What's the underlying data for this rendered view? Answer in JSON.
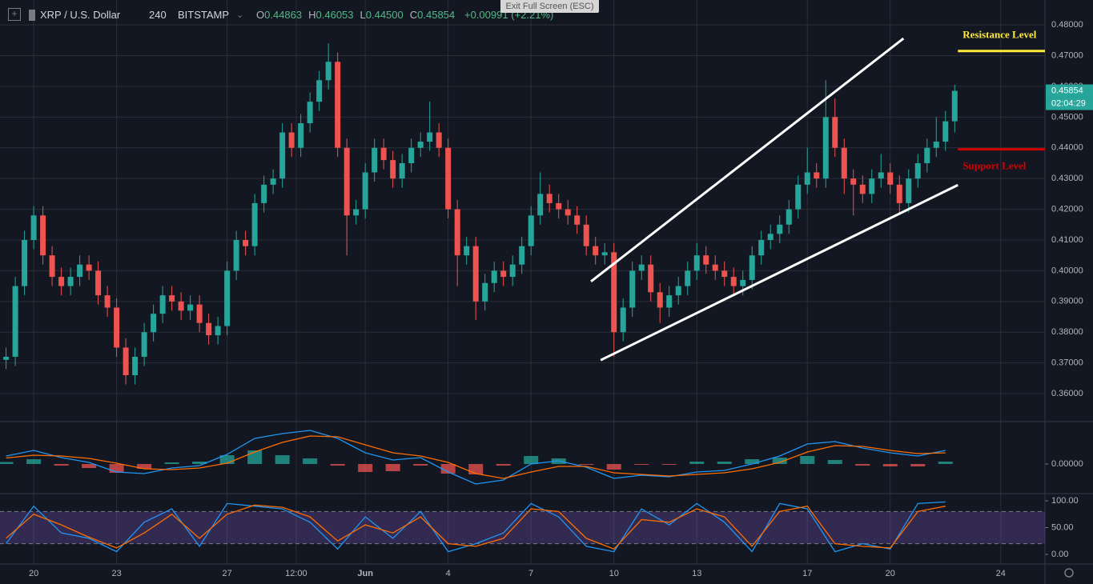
{
  "header": {
    "symbol": "XRP / U.S. Dollar",
    "interval": "240",
    "exchange": "BITSTAMP",
    "ohlc": [
      {
        "label": "O",
        "value": "0.44863"
      },
      {
        "label": "H",
        "value": "0.46053"
      },
      {
        "label": "L",
        "value": "0.44500"
      },
      {
        "label": "C",
        "value": "0.45854"
      }
    ],
    "change": "+0.00991 (+2.21%)",
    "exit_button": "Exit Full Screen (ESC)"
  },
  "chart_data": [
    {
      "type": "candlestick",
      "up_color": "#26a69a",
      "down_color": "#ef5350",
      "grid": true,
      "xlim": [
        -1.22,
        36.6
      ],
      "xticks": [
        {
          "value": 0,
          "label": "20"
        },
        {
          "value": 3,
          "label": "23"
        },
        {
          "value": 7,
          "label": "27"
        },
        {
          "value": 9.5,
          "label": "12:00"
        },
        {
          "value": 12,
          "label": "Jun"
        },
        {
          "value": 15,
          "label": "4"
        },
        {
          "value": 18,
          "label": "7"
        },
        {
          "value": 21,
          "label": "10"
        },
        {
          "value": 24,
          "label": "13"
        },
        {
          "value": 28,
          "label": "17"
        },
        {
          "value": 31,
          "label": "20"
        },
        {
          "value": 35,
          "label": "24"
        }
      ],
      "ylim": [
        0.3509,
        0.4881
      ],
      "yticks": [
        {
          "value": 0.36,
          "label": "0.36000"
        },
        {
          "value": 0.37,
          "label": "0.37000"
        },
        {
          "value": 0.38,
          "label": "0.38000"
        },
        {
          "value": 0.39,
          "label": "0.39000"
        },
        {
          "value": 0.4,
          "label": "0.40000"
        },
        {
          "value": 0.41,
          "label": "0.41000"
        },
        {
          "value": 0.42,
          "label": "0.42000"
        },
        {
          "value": 0.43,
          "label": "0.43000"
        },
        {
          "value": 0.44,
          "label": "0.44000"
        },
        {
          "value": 0.45,
          "label": "0.45000"
        },
        {
          "value": 0.46,
          "label": "0.46000"
        },
        {
          "value": 0.47,
          "label": "0.47000"
        },
        {
          "value": 0.48,
          "label": "0.48000"
        }
      ],
      "last_price": 0.45854,
      "countdown": "02:04:29",
      "candles": {
        "open": [
          0.371,
          0.372,
          0.395,
          0.41,
          0.418,
          0.405,
          0.398,
          0.395,
          0.398,
          0.402,
          0.4,
          0.392,
          0.388,
          0.375,
          0.366,
          0.372,
          0.38,
          0.386,
          0.392,
          0.39,
          0.387,
          0.389,
          0.383,
          0.379,
          0.382,
          0.4,
          0.41,
          0.408,
          0.422,
          0.428,
          0.43,
          0.445,
          0.44,
          0.448,
          0.455,
          0.462,
          0.468,
          0.44,
          0.418,
          0.42,
          0.432,
          0.44,
          0.436,
          0.43,
          0.435,
          0.44,
          0.442,
          0.445,
          0.44,
          0.42,
          0.405,
          0.408,
          0.39,
          0.396,
          0.4,
          0.398,
          0.402,
          0.408,
          0.418,
          0.425,
          0.422,
          0.42,
          0.418,
          0.415,
          0.408,
          0.405,
          0.406,
          0.38,
          0.388,
          0.4,
          0.402,
          0.393,
          0.388,
          0.392,
          0.395,
          0.4,
          0.405,
          0.402,
          0.4,
          0.398,
          0.395,
          0.397,
          0.405,
          0.41,
          0.412,
          0.415,
          0.42,
          0.428,
          0.432,
          0.43,
          0.45,
          0.44,
          0.43,
          0.428,
          0.425,
          0.43,
          0.432,
          0.428,
          0.422,
          0.43,
          0.435,
          0.44,
          0.442,
          0.44863
        ],
        "high": [
          0.375,
          0.398,
          0.413,
          0.421,
          0.421,
          0.408,
          0.401,
          0.401,
          0.405,
          0.405,
          0.403,
          0.395,
          0.391,
          0.378,
          0.375,
          0.383,
          0.389,
          0.395,
          0.395,
          0.393,
          0.392,
          0.392,
          0.386,
          0.385,
          0.403,
          0.413,
          0.413,
          0.425,
          0.431,
          0.433,
          0.448,
          0.448,
          0.451,
          0.458,
          0.465,
          0.474,
          0.471,
          0.443,
          0.423,
          0.435,
          0.443,
          0.443,
          0.439,
          0.438,
          0.443,
          0.445,
          0.455,
          0.448,
          0.443,
          0.423,
          0.411,
          0.411,
          0.399,
          0.403,
          0.403,
          0.405,
          0.411,
          0.421,
          0.432,
          0.428,
          0.425,
          0.423,
          0.421,
          0.418,
          0.411,
          0.409,
          0.409,
          0.391,
          0.403,
          0.405,
          0.405,
          0.396,
          0.395,
          0.398,
          0.403,
          0.409,
          0.408,
          0.405,
          0.403,
          0.401,
          0.4,
          0.408,
          0.413,
          0.415,
          0.418,
          0.423,
          0.431,
          0.44,
          0.435,
          0.462,
          0.456,
          0.443,
          0.433,
          0.431,
          0.433,
          0.438,
          0.435,
          0.431,
          0.433,
          0.438,
          0.443,
          0.45,
          0.452,
          0.46053
        ],
        "low": [
          0.368,
          0.369,
          0.392,
          0.407,
          0.402,
          0.395,
          0.392,
          0.392,
          0.395,
          0.397,
          0.389,
          0.385,
          0.372,
          0.363,
          0.363,
          0.369,
          0.377,
          0.383,
          0.387,
          0.384,
          0.384,
          0.38,
          0.376,
          0.376,
          0.379,
          0.397,
          0.405,
          0.405,
          0.419,
          0.425,
          0.427,
          0.437,
          0.437,
          0.445,
          0.452,
          0.459,
          0.437,
          0.405,
          0.415,
          0.417,
          0.429,
          0.433,
          0.427,
          0.427,
          0.432,
          0.437,
          0.439,
          0.437,
          0.417,
          0.395,
          0.402,
          0.384,
          0.387,
          0.393,
          0.395,
          0.395,
          0.399,
          0.405,
          0.415,
          0.419,
          0.417,
          0.415,
          0.412,
          0.405,
          0.402,
          0.402,
          0.372,
          0.377,
          0.385,
          0.397,
          0.39,
          0.383,
          0.385,
          0.389,
          0.392,
          0.397,
          0.399,
          0.397,
          0.395,
          0.392,
          0.392,
          0.394,
          0.402,
          0.407,
          0.409,
          0.412,
          0.417,
          0.425,
          0.427,
          0.427,
          0.437,
          0.425,
          0.418,
          0.422,
          0.422,
          0.427,
          0.425,
          0.419,
          0.419,
          0.427,
          0.432,
          0.437,
          0.439,
          0.445
        ],
        "close": [
          0.372,
          0.395,
          0.41,
          0.418,
          0.405,
          0.398,
          0.395,
          0.398,
          0.402,
          0.4,
          0.392,
          0.388,
          0.375,
          0.366,
          0.372,
          0.38,
          0.386,
          0.392,
          0.39,
          0.387,
          0.389,
          0.383,
          0.379,
          0.382,
          0.4,
          0.41,
          0.408,
          0.422,
          0.428,
          0.43,
          0.445,
          0.44,
          0.448,
          0.455,
          0.462,
          0.468,
          0.44,
          0.418,
          0.42,
          0.432,
          0.44,
          0.436,
          0.43,
          0.435,
          0.44,
          0.442,
          0.445,
          0.44,
          0.42,
          0.405,
          0.408,
          0.39,
          0.396,
          0.4,
          0.398,
          0.402,
          0.408,
          0.418,
          0.425,
          0.422,
          0.42,
          0.418,
          0.415,
          0.408,
          0.405,
          0.406,
          0.38,
          0.388,
          0.4,
          0.402,
          0.393,
          0.388,
          0.392,
          0.395,
          0.4,
          0.405,
          0.402,
          0.4,
          0.398,
          0.395,
          0.397,
          0.405,
          0.41,
          0.412,
          0.415,
          0.42,
          0.428,
          0.432,
          0.43,
          0.45,
          0.44,
          0.43,
          0.428,
          0.425,
          0.43,
          0.432,
          0.428,
          0.422,
          0.43,
          0.435,
          0.44,
          0.442,
          0.44863,
          0.45854
        ]
      },
      "trendlines": [
        {
          "color": "#ffffff",
          "x": [
            20.17,
            31.48
          ],
          "y": [
            0.3965,
            0.4756
          ]
        },
        {
          "color": "#ffffff",
          "x": [
            20.52,
            33.45
          ],
          "y": [
            0.3709,
            0.4279
          ]
        }
      ],
      "levels": [
        {
          "text": "Resistance Level",
          "color": "#ffeb3b",
          "x": [
            33.45,
            36.6
          ],
          "y": 0.4715
        },
        {
          "text": "Support Level",
          "color": "#d50000",
          "x": [
            33.45,
            36.6
          ],
          "y": 0.4395
        }
      ]
    },
    {
      "type": "macd",
      "ylim": [
        -0.0074,
        0.0104
      ],
      "yticks": [
        {
          "value": 0,
          "label": "0.00000"
        }
      ],
      "up_color": "#26a69a",
      "down_color": "#ef5350",
      "histogram": {
        "values": [
          0.0005,
          0.0012,
          -0.0004,
          -0.001,
          -0.0022,
          -0.0012,
          0.0004,
          0.0006,
          0.0022,
          0.0034,
          0.0022,
          0.0014,
          -0.0004,
          -0.002,
          -0.0018,
          -0.0004,
          -0.0024,
          -0.0026,
          -0.0004,
          0.002,
          0.0014,
          -0.0002,
          -0.0014,
          -0.0002,
          -0.0002,
          0.0006,
          0.0006,
          0.0012,
          0.0016,
          0.002,
          0.001,
          -0.0004,
          -0.0006,
          -0.0006,
          0.0006
        ]
      },
      "series": [
        {
          "color": "#2196f3",
          "values": [
            0.002,
            0.0034,
            0.0016,
            0.0004,
            -0.002,
            -0.0024,
            -0.001,
            -0.0004,
            0.0024,
            0.0064,
            0.0076,
            0.0084,
            0.0064,
            0.0028,
            0.001,
            0.0016,
            -0.002,
            -0.005,
            -0.004,
            0,
            0.0008,
            -0.0008,
            -0.0036,
            -0.0028,
            -0.0032,
            -0.002,
            -0.0016,
            0,
            0.002,
            0.005,
            0.0056,
            0.004,
            0.0028,
            0.002,
            0.0034
          ]
        },
        {
          "color": "#ff6d00",
          "values": [
            0.0015,
            0.0022,
            0.002,
            0.0014,
            0.0002,
            -0.0012,
            -0.0014,
            -0.001,
            0.0002,
            0.003,
            0.0054,
            0.007,
            0.0068,
            0.0048,
            0.0028,
            0.002,
            0.0004,
            -0.0024,
            -0.0036,
            -0.002,
            -0.0006,
            -0.0006,
            -0.0022,
            -0.0026,
            -0.003,
            -0.0026,
            -0.0022,
            -0.0012,
            0.0004,
            0.003,
            0.0046,
            0.0044,
            0.0034,
            0.0026,
            0.0028
          ]
        }
      ]
    },
    {
      "type": "stochastic",
      "ylim": [
        -18,
        112
      ],
      "yticks": [
        {
          "value": 0,
          "label": "0.00"
        },
        {
          "value": 50,
          "label": "50.00"
        },
        {
          "value": 100,
          "label": "100.00"
        }
      ],
      "band": [
        20,
        80
      ],
      "band_color": "#7e57c2",
      "series": [
        {
          "color": "#2196f3",
          "values": [
            20,
            90,
            40,
            30,
            5,
            60,
            85,
            15,
            95,
            90,
            85,
            60,
            10,
            70,
            30,
            80,
            5,
            20,
            40,
            95,
            70,
            15,
            5,
            85,
            55,
            95,
            60,
            5,
            95,
            85,
            5,
            20,
            10,
            95,
            98
          ]
        },
        {
          "color": "#ff6d00",
          "values": [
            30,
            75,
            55,
            32,
            12,
            40,
            75,
            30,
            75,
            92,
            88,
            70,
            25,
            55,
            40,
            70,
            20,
            15,
            30,
            85,
            80,
            30,
            10,
            65,
            60,
            85,
            70,
            15,
            80,
            90,
            20,
            15,
            12,
            80,
            90
          ]
        }
      ]
    }
  ]
}
